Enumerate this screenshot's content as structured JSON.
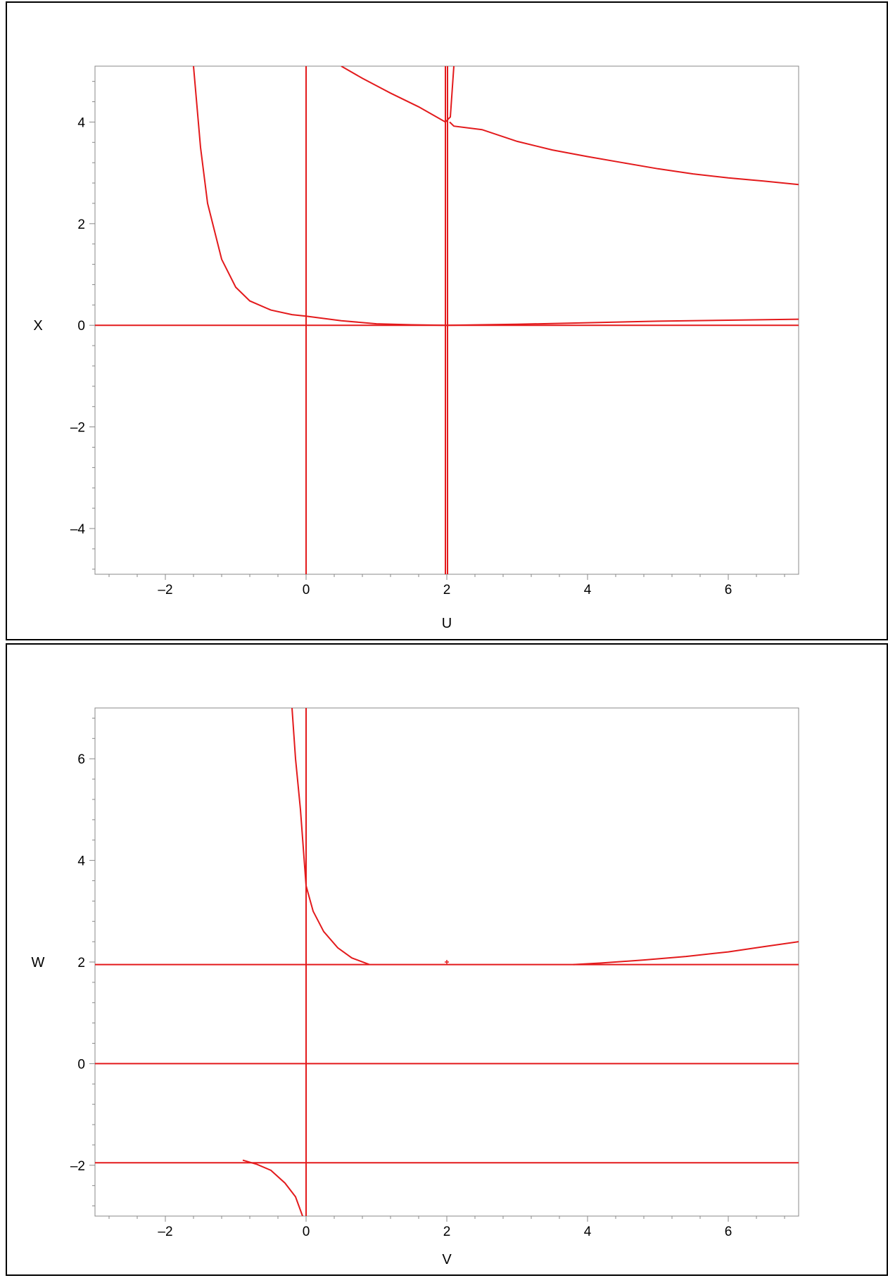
{
  "colors": {
    "curve": "#e31a1c",
    "axis": "#888888",
    "text": "#000000"
  },
  "chart_data": [
    {
      "type": "line",
      "xlabel": "U",
      "ylabel": "X",
      "xlim": [
        -3,
        7
      ],
      "ylim": [
        -4.9,
        5.1
      ],
      "xticks": [
        -2,
        0,
        2,
        4,
        6
      ],
      "xtick_labels": [
        "–2",
        "0",
        "2",
        "4",
        "6"
      ],
      "yticks": [
        -4,
        -2,
        0,
        2,
        4
      ],
      "ytick_labels": [
        "–4",
        "–2",
        "0",
        "2",
        "4"
      ],
      "grid": false,
      "series": [
        {
          "points": [
            [
              -3,
              0
            ],
            [
              7,
              0
            ]
          ]
        },
        {
          "points": [
            [
              0,
              -4.9
            ],
            [
              0,
              5.1
            ]
          ]
        },
        {
          "points": [
            [
              1.98,
              -4.9
            ],
            [
              1.98,
              5.1
            ]
          ]
        },
        {
          "points": [
            [
              2.01,
              -4.9
            ],
            [
              2.01,
              5.1
            ]
          ]
        },
        {
          "points": [
            [
              -1.6,
              5.1
            ],
            [
              -1.5,
              3.5
            ],
            [
              -1.4,
              2.4
            ],
            [
              -1.2,
              1.3
            ],
            [
              -1.0,
              0.75
            ],
            [
              -0.8,
              0.48
            ],
            [
              -0.5,
              0.3
            ],
            [
              -0.2,
              0.21
            ],
            [
              0,
              0.18
            ],
            [
              0.5,
              0.09
            ],
            [
              1.0,
              0.03
            ],
            [
              1.5,
              0.01
            ],
            [
              2.0,
              0.0
            ],
            [
              3.0,
              0.02
            ],
            [
              4.0,
              0.05
            ],
            [
              5.0,
              0.08
            ],
            [
              6.0,
              0.1
            ],
            [
              7.0,
              0.12
            ]
          ]
        },
        {
          "points": [
            [
              0.5,
              5.1
            ],
            [
              0.8,
              4.86
            ],
            [
              1.2,
              4.57
            ],
            [
              1.6,
              4.3
            ],
            [
              1.98,
              4.0
            ],
            [
              2.05,
              4.1
            ],
            [
              2.1,
              5.1
            ]
          ]
        },
        {
          "points": [
            [
              2.04,
              4.0
            ],
            [
              2.1,
              3.92
            ],
            [
              2.5,
              3.85
            ],
            [
              3.0,
              3.62
            ],
            [
              3.5,
              3.45
            ],
            [
              4.0,
              3.32
            ],
            [
              4.5,
              3.2
            ],
            [
              5.0,
              3.08
            ],
            [
              5.5,
              2.98
            ],
            [
              6.0,
              2.9
            ],
            [
              6.5,
              2.84
            ],
            [
              7.0,
              2.77
            ]
          ]
        }
      ]
    },
    {
      "type": "line",
      "xlabel": "V",
      "ylabel": "W",
      "xlim": [
        -3,
        7
      ],
      "ylim": [
        -3,
        7
      ],
      "xticks": [
        -2,
        0,
        2,
        4,
        6
      ],
      "xtick_labels": [
        "–2",
        "0",
        "2",
        "4",
        "6"
      ],
      "yticks": [
        -2,
        0,
        2,
        4,
        6
      ],
      "ytick_labels": [
        "–2",
        "0",
        "2",
        "4",
        "6"
      ],
      "grid": false,
      "series": [
        {
          "points": [
            [
              -3,
              1.95
            ],
            [
              7,
              1.95
            ]
          ]
        },
        {
          "points": [
            [
              -3,
              0
            ],
            [
              7,
              0
            ]
          ]
        },
        {
          "points": [
            [
              -3,
              -1.95
            ],
            [
              7,
              -1.95
            ]
          ]
        },
        {
          "points": [
            [
              0,
              -3
            ],
            [
              0,
              7
            ]
          ]
        },
        {
          "points": [
            [
              -0.2,
              7
            ],
            [
              -0.15,
              6
            ],
            [
              -0.08,
              5
            ],
            [
              0,
              3.5
            ],
            [
              0.1,
              3.0
            ],
            [
              0.25,
              2.6
            ],
            [
              0.45,
              2.28
            ],
            [
              0.65,
              2.08
            ],
            [
              0.9,
              1.95
            ]
          ]
        },
        {
          "points": [
            [
              3.8,
              1.95
            ],
            [
              4.2,
              1.98
            ],
            [
              4.8,
              2.04
            ],
            [
              5.4,
              2.11
            ],
            [
              6.0,
              2.2
            ],
            [
              6.5,
              2.3
            ],
            [
              7.0,
              2.4
            ]
          ]
        },
        {
          "points": [
            [
              -0.9,
              -1.9
            ],
            [
              -0.7,
              -1.98
            ],
            [
              -0.5,
              -2.1
            ],
            [
              -0.3,
              -2.35
            ],
            [
              -0.15,
              -2.62
            ],
            [
              -0.05,
              -3
            ]
          ]
        }
      ],
      "markers": [
        {
          "x": 2,
          "y": 2
        }
      ]
    }
  ]
}
